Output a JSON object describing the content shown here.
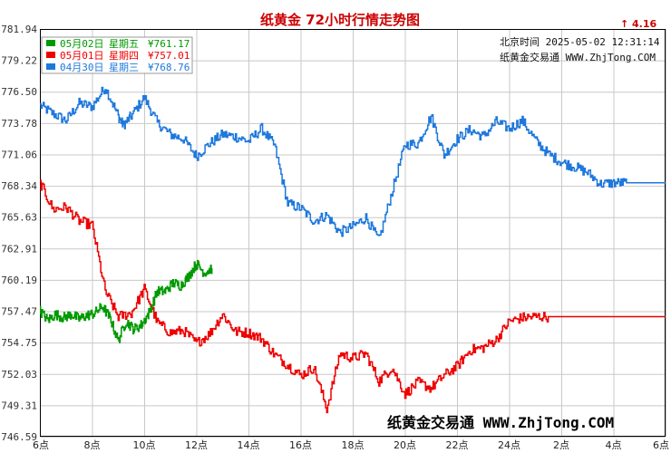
{
  "header": {
    "title": "纸黄金 72小时行情走势图",
    "change_arrow": "↑",
    "change_value": "4.16"
  },
  "info": {
    "line1": "北京时间 2025-05-02 12:31:14",
    "line2": "纸黄金交易通 WWW.ZhjTong.COM"
  },
  "watermark": "纸黄金交易通 WWW.ZhjTong.COM",
  "colors": {
    "grid": "#c8c8c8",
    "axis": "#000000",
    "series_0502": "#009900",
    "series_0501": "#ee0000",
    "series_0430": "#1e78dc"
  },
  "chart_data": {
    "type": "line",
    "y_ticks": [
      "781.94",
      "779.22",
      "776.50",
      "773.78",
      "771.06",
      "768.34",
      "765.63",
      "762.91",
      "760.19",
      "757.47",
      "754.75",
      "752.03",
      "749.31",
      "746.59"
    ],
    "ylim": [
      746.59,
      781.94
    ],
    "x_ticks": [
      "6点",
      "8点",
      "10点",
      "12点",
      "14点",
      "16点",
      "18点",
      "20点",
      "22点",
      "24点",
      "2点",
      "4点",
      "6点"
    ],
    "xlim": [
      0,
      24
    ],
    "grid": true,
    "legend": "top-left",
    "legend_entries": [
      {
        "date": "05月02日",
        "weekday": "星期五",
        "price": "¥761.17"
      },
      {
        "date": "05月01日",
        "weekday": "星期四",
        "price": "¥757.01"
      },
      {
        "date": "04月30日",
        "weekday": "星期三",
        "price": "¥768.76"
      }
    ],
    "series": [
      {
        "key": "0430",
        "x": [
          0,
          0.5,
          1,
          1.5,
          2,
          2.5,
          3,
          3.2,
          3.5,
          4,
          4.5,
          5,
          5.5,
          6,
          6.5,
          7,
          7.5,
          8,
          8.5,
          9,
          9.5,
          10,
          10.5,
          11,
          11.5,
          12,
          12.5,
          13,
          13.5,
          14,
          14.5,
          15,
          15.5,
          16,
          16.5,
          17,
          17.5,
          18,
          18.5,
          19,
          19.5,
          20,
          20.5,
          21,
          21.5,
          22,
          22.5,
          23,
          23.5,
          24
        ],
        "y": [
          775.3,
          774.6,
          774.0,
          775.5,
          775.2,
          776.9,
          774.4,
          773.6,
          774.4,
          776.0,
          773.8,
          772.8,
          772.4,
          770.9,
          772.0,
          772.8,
          772.6,
          772.2,
          773.3,
          771.8,
          766.8,
          766.4,
          765.3,
          765.8,
          764.3,
          764.8,
          765.6,
          763.6,
          767.8,
          771.9,
          772.0,
          774.4,
          771.0,
          772.4,
          773.2,
          772.6,
          773.9,
          773.3,
          774.0,
          772.3,
          771.1,
          770.4,
          770.0,
          769.5,
          768.5,
          768.6,
          768.6,
          768.6,
          768.6,
          768.6
        ]
      },
      {
        "key": "0501",
        "x": [
          0,
          0.5,
          1,
          1.5,
          2,
          2.5,
          3,
          3.5,
          4,
          4.5,
          5,
          5.5,
          6,
          6.5,
          7,
          7.5,
          8,
          8.5,
          9,
          9.5,
          10,
          10.5,
          11,
          11.5,
          12,
          12.5,
          13,
          13.5,
          14,
          14.5,
          15,
          15.5,
          16,
          16.5,
          17,
          17.5,
          18,
          18.5,
          19,
          19.5,
          20,
          20.5,
          21,
          21.5,
          22,
          22.5,
          23,
          23.5,
          24
        ],
        "y": [
          768.6,
          766.3,
          766.5,
          765.3,
          764.9,
          759.2,
          757.0,
          757.3,
          759.4,
          756.5,
          755.6,
          755.8,
          754.7,
          755.5,
          757.2,
          755.7,
          755.6,
          755.1,
          753.7,
          752.8,
          751.9,
          752.6,
          749.0,
          753.8,
          753.4,
          753.8,
          751.4,
          752.6,
          750.3,
          751.3,
          750.8,
          751.9,
          752.7,
          754.1,
          754.3,
          755.0,
          756.6,
          756.9,
          757.0,
          757.0,
          757.0,
          757.0,
          757.0,
          757.0,
          757.0,
          757.0,
          757.0,
          757.0,
          757.0
        ]
      },
      {
        "key": "0502",
        "x": [
          0,
          0.3,
          0.6,
          0.9,
          1.2,
          1.5,
          1.8,
          2.1,
          2.4,
          2.7,
          3.0,
          3.3,
          3.6,
          3.9,
          4.2,
          4.5,
          4.8,
          5.1,
          5.4,
          5.7,
          6.0,
          6.3,
          6.6
        ],
        "y": [
          757.5,
          756.7,
          757.2,
          756.9,
          757.2,
          756.8,
          757.1,
          757.3,
          757.9,
          756.8,
          754.9,
          756.6,
          755.9,
          756.3,
          757.4,
          759.2,
          759.2,
          759.9,
          759.7,
          760.5,
          761.6,
          760.8,
          761.2
        ]
      }
    ]
  }
}
